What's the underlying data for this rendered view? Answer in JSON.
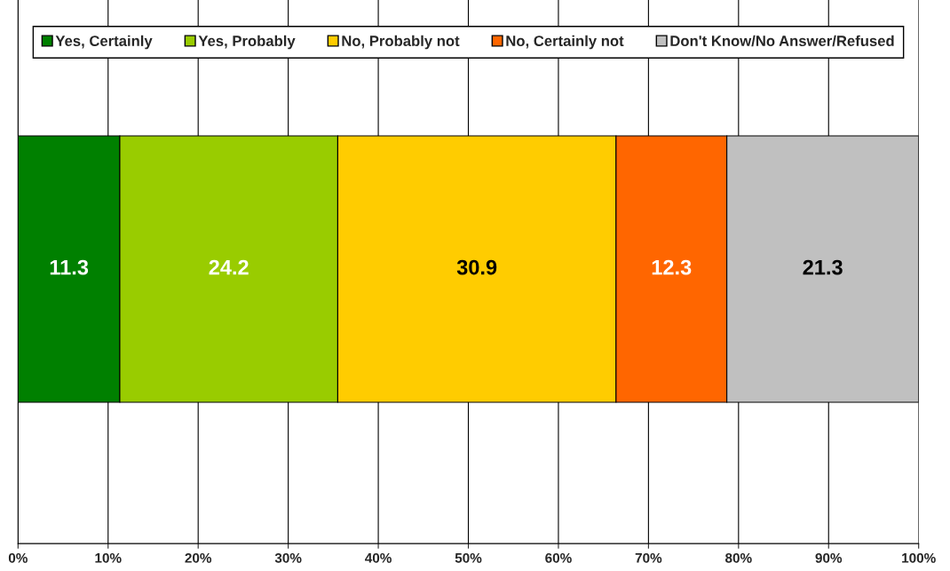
{
  "chart_data": {
    "type": "bar",
    "orientation": "horizontal",
    "stacked": true,
    "categories": [
      null
    ],
    "series": [
      {
        "name": "Yes, Certainly",
        "color": "#008000",
        "values": [
          11.3
        ]
      },
      {
        "name": "Yes, Probably",
        "color": "#99cc00",
        "values": [
          24.2
        ]
      },
      {
        "name": "No, Probably not",
        "color": "#ffcc00",
        "values": [
          30.9
        ]
      },
      {
        "name": "No, Certainly not",
        "color": "#ff6600",
        "values": [
          12.3
        ]
      },
      {
        "name": "Don't Know/No Answer/Refused",
        "color": "#c0c0c0",
        "values": [
          21.3
        ]
      }
    ],
    "xlim": [
      0,
      100
    ],
    "xticks": [
      {
        "value": 0,
        "label": "0%"
      },
      {
        "value": 10,
        "label": "10%"
      },
      {
        "value": 20,
        "label": "20%"
      },
      {
        "value": 30,
        "label": "30%"
      },
      {
        "value": 40,
        "label": "40%"
      },
      {
        "value": 50,
        "label": "50%"
      },
      {
        "value": 60,
        "label": "60%"
      },
      {
        "value": 70,
        "label": "70%"
      },
      {
        "value": 80,
        "label": "80%"
      },
      {
        "value": 90,
        "label": "90%"
      },
      {
        "value": 100,
        "label": "100%"
      }
    ],
    "data_labels": true,
    "grid": "x",
    "legend": "top",
    "tick_labels": "x"
  }
}
